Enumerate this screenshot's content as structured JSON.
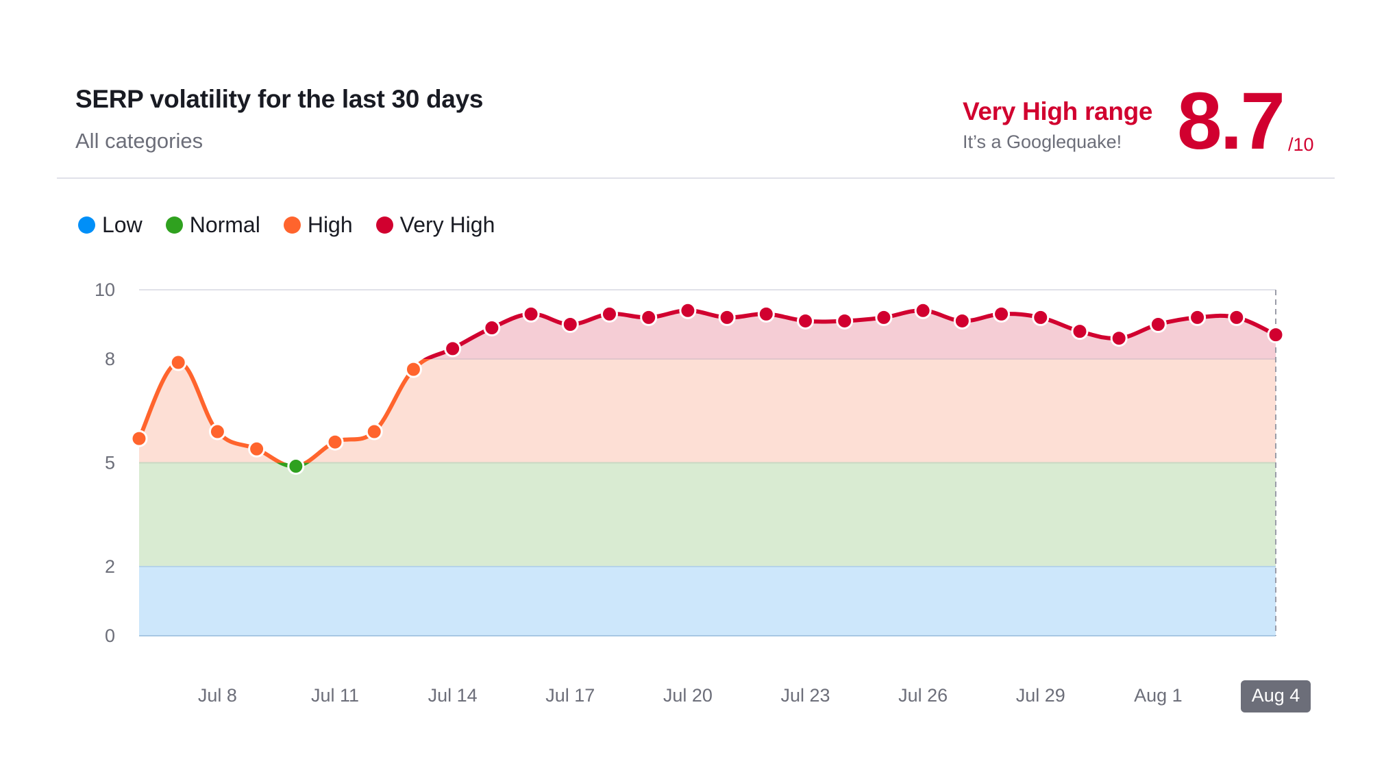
{
  "header": {
    "title": "SERP volatility for the last 30 days",
    "subtitle": "All categories",
    "range_label": "Very High range",
    "range_description": "It’s a Googlequake!",
    "score": "8.7",
    "score_max": "/10"
  },
  "legend": [
    {
      "label": "Low",
      "color": "#008ff8"
    },
    {
      "label": "Normal",
      "color": "#2fa11f"
    },
    {
      "label": "High",
      "color": "#ff642d"
    },
    {
      "label": "Very High",
      "color": "#d1002f"
    }
  ],
  "chart_data": {
    "type": "line",
    "ylim": [
      0,
      10
    ],
    "yticks": [
      0,
      2,
      5,
      8,
      10
    ],
    "bands": [
      {
        "name": "Low",
        "from": 0,
        "to": 2,
        "fill": "#cde7fb"
      },
      {
        "name": "Normal",
        "from": 2,
        "to": 5,
        "fill": "#d9ebd2"
      },
      {
        "name": "High",
        "from": 5,
        "to": 8,
        "fill": "#fddfd5"
      },
      {
        "name": "Very High",
        "from": 8,
        "to": 10,
        "fill": "#f5cdd5"
      }
    ],
    "x": [
      "Jul 6",
      "Jul 7",
      "Jul 8",
      "Jul 9",
      "Jul 10",
      "Jul 11",
      "Jul 12",
      "Jul 13",
      "Jul 14",
      "Jul 15",
      "Jul 16",
      "Jul 17",
      "Jul 18",
      "Jul 19",
      "Jul 20",
      "Jul 21",
      "Jul 22",
      "Jul 23",
      "Jul 24",
      "Jul 25",
      "Jul 26",
      "Jul 27",
      "Jul 28",
      "Jul 29",
      "Jul 30",
      "Jul 31",
      "Aug 1",
      "Aug 2",
      "Aug 3",
      "Aug 4"
    ],
    "values": [
      5.7,
      7.9,
      5.9,
      5.4,
      4.9,
      5.6,
      5.9,
      7.7,
      8.3,
      8.9,
      9.3,
      9.0,
      9.3,
      9.2,
      9.4,
      9.2,
      9.3,
      9.1,
      9.1,
      9.2,
      9.4,
      9.1,
      9.3,
      9.2,
      8.8,
      8.6,
      9.0,
      9.2,
      9.2,
      8.7
    ],
    "xticks": [
      "Jul 8",
      "Jul 11",
      "Jul 14",
      "Jul 17",
      "Jul 20",
      "Jul 23",
      "Jul 26",
      "Jul 29",
      "Aug 1",
      "Aug 4"
    ],
    "highlighted_x": "Aug 4",
    "grid": true
  }
}
